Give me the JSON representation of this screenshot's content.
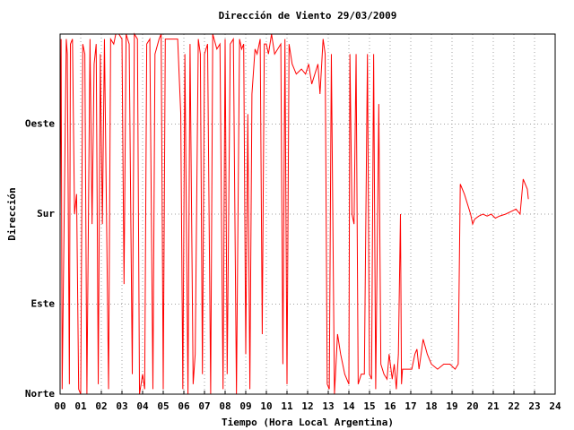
{
  "chart_data": {
    "type": "line",
    "title": "Dirección de Viento 29/03/2009",
    "x_label": "Tiempo (Hora Local Argentina)",
    "y_label": "Dirección",
    "color": "#ff0000",
    "grid": true,
    "xlim": [
      0,
      24
    ],
    "ylim": [
      0,
      360
    ],
    "xticks": [
      {
        "value": 0,
        "label": "00"
      },
      {
        "value": 1,
        "label": "01"
      },
      {
        "value": 2,
        "label": "02"
      },
      {
        "value": 3,
        "label": "03"
      },
      {
        "value": 4,
        "label": "04"
      },
      {
        "value": 5,
        "label": "05"
      },
      {
        "value": 6,
        "label": "06"
      },
      {
        "value": 7,
        "label": "07"
      },
      {
        "value": 8,
        "label": "08"
      },
      {
        "value": 9,
        "label": "09"
      },
      10,
      11,
      12,
      13,
      14,
      15,
      16,
      17,
      18,
      19,
      20,
      21,
      22,
      23,
      24
    ],
    "yticks": [
      {
        "value": 0,
        "label": "Norte"
      },
      {
        "value": 90,
        "label": "Este"
      },
      {
        "value": 180,
        "label": "Sur"
      },
      {
        "value": 270,
        "label": "Oeste"
      }
    ],
    "x": [
      0.0,
      0.05,
      0.1,
      0.2,
      0.3,
      0.35,
      0.45,
      0.5,
      0.6,
      0.7,
      0.8,
      0.9,
      1.0,
      1.1,
      1.2,
      1.3,
      1.45,
      1.55,
      1.65,
      1.75,
      1.85,
      1.95,
      2.05,
      2.15,
      2.25,
      2.35,
      2.45,
      2.6,
      2.7,
      2.85,
      3.0,
      3.1,
      3.2,
      3.35,
      3.5,
      3.6,
      3.75,
      3.85,
      4.0,
      4.1,
      4.2,
      4.35,
      4.5,
      4.6,
      4.8,
      4.9,
      5.0,
      5.1,
      5.3,
      5.5,
      5.7,
      5.85,
      5.95,
      6.05,
      6.2,
      6.3,
      6.45,
      6.55,
      6.7,
      6.8,
      6.9,
      7.0,
      7.15,
      7.3,
      7.4,
      7.6,
      7.75,
      7.9,
      8.0,
      8.1,
      8.25,
      8.4,
      8.55,
      8.7,
      8.8,
      8.9,
      9.0,
      9.1,
      9.2,
      9.3,
      9.45,
      9.55,
      9.7,
      9.8,
      9.9,
      10.0,
      10.1,
      10.25,
      10.4,
      10.55,
      10.7,
      10.8,
      10.9,
      11.0,
      11.1,
      11.25,
      11.45,
      11.7,
      11.9,
      12.05,
      12.2,
      12.35,
      12.5,
      12.6,
      12.75,
      12.85,
      12.95,
      13.05,
      13.15,
      13.3,
      13.45,
      13.6,
      13.8,
      14.0,
      14.05,
      14.15,
      14.25,
      14.35,
      14.45,
      14.6,
      14.75,
      14.9,
      15.0,
      15.1,
      15.2,
      15.3,
      15.45,
      15.55,
      15.7,
      15.85,
      15.95,
      16.1,
      16.2,
      16.3,
      16.4,
      16.5,
      16.55,
      16.6,
      16.8,
      17.05,
      17.2,
      17.3,
      17.4,
      17.6,
      17.8,
      18.0,
      18.3,
      18.6,
      18.9,
      19.15,
      19.3,
      19.4,
      19.6,
      19.9,
      20.0,
      20.1,
      20.3,
      20.5,
      20.7,
      20.9,
      21.1,
      21.3,
      21.6,
      21.9,
      22.1,
      22.3,
      22.45,
      22.55,
      22.65,
      22.7
    ],
    "values": [
      180,
      355,
      5,
      180,
      355,
      340,
      10,
      350,
      355,
      180,
      200,
      5,
      0,
      350,
      340,
      0,
      355,
      170,
      330,
      350,
      10,
      340,
      170,
      355,
      180,
      5,
      355,
      350,
      360,
      360,
      355,
      110,
      360,
      350,
      20,
      360,
      355,
      0,
      20,
      5,
      350,
      355,
      5,
      340,
      355,
      360,
      5,
      355,
      355,
      355,
      355,
      280,
      5,
      340,
      0,
      350,
      10,
      40,
      355,
      340,
      20,
      340,
      350,
      0,
      360,
      345,
      350,
      5,
      355,
      20,
      350,
      355,
      0,
      355,
      345,
      350,
      40,
      280,
      5,
      300,
      345,
      340,
      355,
      60,
      350,
      350,
      340,
      360,
      340,
      345,
      350,
      30,
      355,
      10,
      350,
      330,
      320,
      325,
      320,
      330,
      310,
      320,
      330,
      300,
      355,
      340,
      10,
      5,
      340,
      0,
      60,
      40,
      20,
      10,
      340,
      180,
      170,
      340,
      10,
      20,
      20,
      340,
      20,
      15,
      340,
      5,
      290,
      30,
      20,
      15,
      40,
      15,
      30,
      5,
      40,
      180,
      10,
      25,
      25,
      25,
      40,
      45,
      25,
      55,
      40,
      30,
      25,
      30,
      30,
      25,
      30,
      210,
      200,
      180,
      170,
      175,
      178,
      180,
      178,
      180,
      176,
      178,
      180,
      183,
      185,
      180,
      215,
      210,
      205,
      195
    ]
  }
}
